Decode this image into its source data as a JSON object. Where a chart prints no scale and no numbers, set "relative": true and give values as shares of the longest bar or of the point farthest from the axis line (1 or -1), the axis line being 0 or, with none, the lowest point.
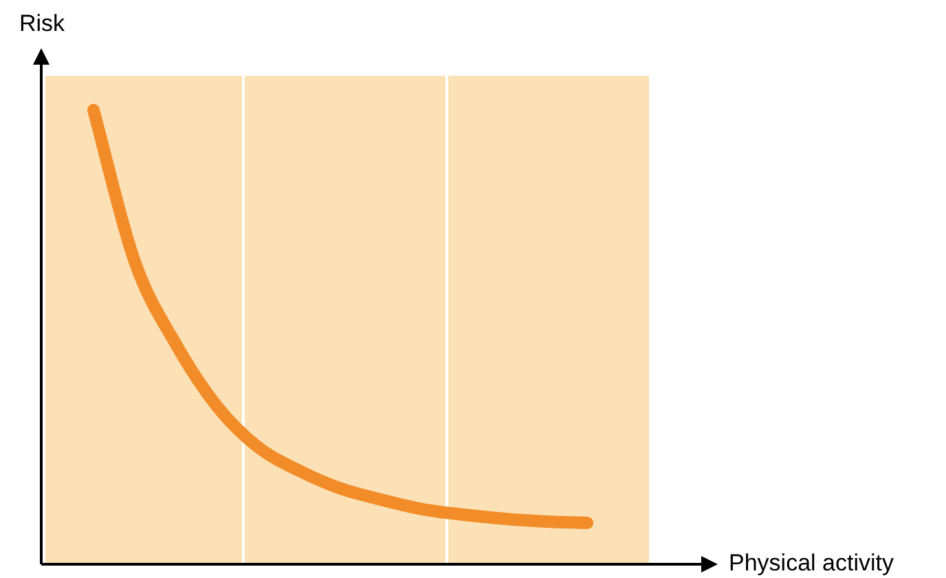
{
  "chart_data": {
    "type": "line",
    "relative": true,
    "xlabel": "Physical activity",
    "ylabel": "Risk",
    "categories": [
      null,
      null,
      null,
      null,
      null,
      null,
      null,
      null,
      null,
      null,
      null,
      null,
      null
    ],
    "series": [
      {
        "color": "#f28c28",
        "values": [
          1.0,
          0.667,
          0.485,
          0.348,
          0.258,
          0.206,
          0.167,
          0.142,
          0.121,
          0.109,
          0.1,
          0.094,
          0.091
        ]
      }
    ]
  }
}
